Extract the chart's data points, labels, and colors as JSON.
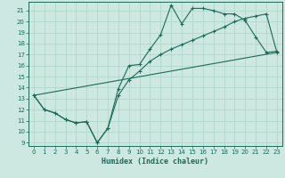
{
  "xlabel": "Humidex (Indice chaleur)",
  "bg_color": "#cce8e0",
  "grid_color": "#aad4c8",
  "line_color": "#1a6b5a",
  "xlim": [
    -0.5,
    23.5
  ],
  "ylim": [
    8.7,
    21.8
  ],
  "xticks": [
    0,
    1,
    2,
    3,
    4,
    5,
    6,
    7,
    8,
    9,
    10,
    11,
    12,
    13,
    14,
    15,
    16,
    17,
    18,
    19,
    20,
    21,
    22,
    23
  ],
  "yticks": [
    9,
    10,
    11,
    12,
    13,
    14,
    15,
    16,
    17,
    18,
    19,
    20,
    21
  ],
  "line1_x": [
    0,
    1,
    2,
    3,
    4,
    5,
    6,
    7,
    8,
    9,
    10,
    11,
    12,
    13,
    14,
    15,
    16,
    17,
    18,
    19,
    20,
    21,
    22,
    23
  ],
  "line1_y": [
    13.3,
    12.0,
    11.7,
    11.1,
    10.8,
    10.9,
    9.0,
    10.3,
    13.9,
    16.0,
    16.1,
    17.5,
    18.8,
    21.5,
    19.8,
    21.2,
    21.2,
    21.0,
    20.7,
    20.7,
    20.1,
    18.6,
    17.2,
    17.3
  ],
  "line2_x": [
    0,
    1,
    2,
    3,
    4,
    5,
    6,
    7,
    8,
    9,
    10,
    11,
    12,
    13,
    14,
    15,
    16,
    17,
    18,
    19,
    20,
    21,
    22,
    23
  ],
  "line2_y": [
    13.3,
    12.0,
    11.7,
    11.1,
    10.8,
    10.9,
    9.0,
    10.3,
    13.3,
    14.7,
    15.5,
    16.4,
    17.0,
    17.5,
    17.9,
    18.3,
    18.7,
    19.1,
    19.5,
    20.0,
    20.3,
    20.5,
    20.7,
    17.2
  ],
  "line3_x": [
    0,
    23
  ],
  "line3_y": [
    13.3,
    17.2
  ]
}
